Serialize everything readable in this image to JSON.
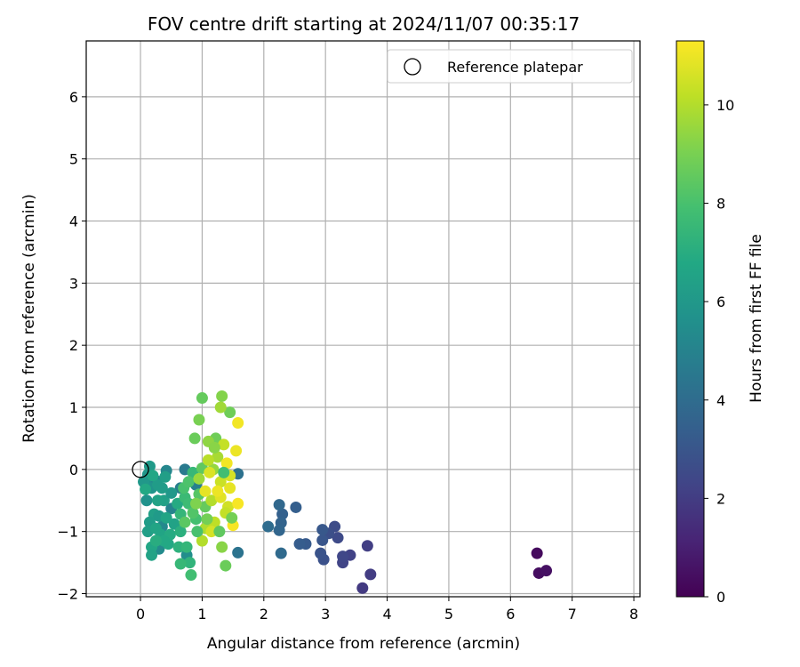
{
  "chart_data": {
    "type": "scatter",
    "title": "FOV centre drift starting at 2024/11/07 00:35:17",
    "xlabel": "Angular distance from reference (arcmin)",
    "ylabel": "Rotation from reference (arcmin)",
    "xlim": [
      -0.88,
      8.1
    ],
    "ylim": [
      -2.05,
      6.9
    ],
    "xticks": [
      0,
      1,
      2,
      3,
      4,
      5,
      6,
      7,
      8
    ],
    "yticks": [
      -2,
      -1,
      0,
      1,
      2,
      3,
      4,
      5,
      6
    ],
    "grid": true,
    "legend": {
      "placement": "top-right",
      "label": "Reference platepar"
    },
    "reference_point": {
      "x": 0,
      "y": 0
    },
    "colorbar": {
      "label": "Hours from first FF file",
      "range": [
        0,
        11.3
      ],
      "ticks": [
        0,
        2,
        4,
        6,
        8,
        10
      ],
      "colormap": "viridis"
    },
    "points": [
      {
        "x": 6.43,
        "y": -1.35,
        "c": 0.3
      },
      {
        "x": 6.46,
        "y": -1.67,
        "c": 0.4
      },
      {
        "x": 6.58,
        "y": -1.63,
        "c": 0.5
      },
      {
        "x": 3.6,
        "y": -1.91,
        "c": 1.9
      },
      {
        "x": 3.73,
        "y": -1.69,
        "c": 2.0
      },
      {
        "x": 3.68,
        "y": -1.23,
        "c": 2.1
      },
      {
        "x": 3.4,
        "y": -1.38,
        "c": 2.2
      },
      {
        "x": 3.28,
        "y": -1.5,
        "c": 2.3
      },
      {
        "x": 3.28,
        "y": -1.4,
        "c": 2.4
      },
      {
        "x": 3.2,
        "y": -1.1,
        "c": 2.5
      },
      {
        "x": 3.15,
        "y": -0.92,
        "c": 2.6
      },
      {
        "x": 3.05,
        "y": -1.03,
        "c": 2.7
      },
      {
        "x": 2.97,
        "y": -1.45,
        "c": 2.8
      },
      {
        "x": 2.92,
        "y": -1.35,
        "c": 2.9
      },
      {
        "x": 2.95,
        "y": -1.14,
        "c": 3.0
      },
      {
        "x": 2.95,
        "y": -0.97,
        "c": 3.1
      },
      {
        "x": 2.68,
        "y": -1.2,
        "c": 3.2
      },
      {
        "x": 2.58,
        "y": -1.2,
        "c": 3.3
      },
      {
        "x": 2.52,
        "y": -0.61,
        "c": 3.4
      },
      {
        "x": 2.3,
        "y": -0.72,
        "c": 3.5
      },
      {
        "x": 2.28,
        "y": -0.86,
        "c": 3.6
      },
      {
        "x": 2.25,
        "y": -0.98,
        "c": 3.7
      },
      {
        "x": 2.25,
        "y": -0.57,
        "c": 3.8
      },
      {
        "x": 2.28,
        "y": -1.35,
        "c": 3.9
      },
      {
        "x": 2.07,
        "y": -0.92,
        "c": 4.0
      },
      {
        "x": 1.58,
        "y": -0.07,
        "c": 4.2
      },
      {
        "x": 1.58,
        "y": -1.34,
        "c": 4.3
      },
      {
        "x": 0.72,
        "y": 0.0,
        "c": 4.6
      },
      {
        "x": 0.65,
        "y": -0.3,
        "c": 4.8
      },
      {
        "x": 0.9,
        "y": -0.25,
        "c": 4.9
      },
      {
        "x": 0.5,
        "y": -0.63,
        "c": 5.0
      },
      {
        "x": 0.25,
        "y": -0.18,
        "c": 5.1
      },
      {
        "x": 0.42,
        "y": -0.02,
        "c": 5.2
      },
      {
        "x": 0.35,
        "y": -0.92,
        "c": 5.3
      },
      {
        "x": 0.3,
        "y": -1.28,
        "c": 5.4
      },
      {
        "x": 0.75,
        "y": -1.38,
        "c": 5.5
      },
      {
        "x": 0.08,
        "y": -0.18,
        "c": 5.6
      },
      {
        "x": 0.1,
        "y": -0.5,
        "c": 5.7
      },
      {
        "x": 0.18,
        "y": -0.3,
        "c": 5.8
      },
      {
        "x": 0.12,
        "y": -0.08,
        "c": 5.9
      },
      {
        "x": 0.05,
        "y": -0.2,
        "c": 6.0
      },
      {
        "x": 0.15,
        "y": 0.05,
        "c": 6.1
      },
      {
        "x": 0.28,
        "y": -0.25,
        "c": 6.2
      },
      {
        "x": 0.4,
        "y": -0.12,
        "c": 6.3
      },
      {
        "x": 0.22,
        "y": -0.72,
        "c": 6.4
      },
      {
        "x": 0.55,
        "y": -0.88,
        "c": 6.5
      },
      {
        "x": 0.33,
        "y": -1.05,
        "c": 6.6
      },
      {
        "x": 0.18,
        "y": -1.25,
        "c": 6.7
      },
      {
        "x": 0.45,
        "y": -1.2,
        "c": 6.8
      },
      {
        "x": 0.6,
        "y": -0.55,
        "c": 6.9
      },
      {
        "x": 0.15,
        "y": -0.85,
        "c": 6.2
      },
      {
        "x": 0.12,
        "y": -1.0,
        "c": 6.3
      },
      {
        "x": 0.18,
        "y": -1.38,
        "c": 6.5
      },
      {
        "x": 0.25,
        "y": -0.95,
        "c": 6.6
      },
      {
        "x": 0.3,
        "y": -0.75,
        "c": 6.1
      },
      {
        "x": 0.38,
        "y": -0.5,
        "c": 6.4
      },
      {
        "x": 0.2,
        "y": -0.1,
        "c": 6.7
      },
      {
        "x": 0.08,
        "y": -0.32,
        "c": 6.8
      },
      {
        "x": 0.5,
        "y": -0.38,
        "c": 6.0
      },
      {
        "x": 0.35,
        "y": -0.3,
        "c": 6.2
      },
      {
        "x": 0.28,
        "y": -0.5,
        "c": 6.5
      },
      {
        "x": 0.42,
        "y": -0.78,
        "c": 6.6
      },
      {
        "x": 0.48,
        "y": -1.05,
        "c": 6.9
      },
      {
        "x": 0.38,
        "y": -1.15,
        "c": 6.8
      },
      {
        "x": 0.25,
        "y": -1.15,
        "c": 7.0
      },
      {
        "x": 0.65,
        "y": -1.0,
        "c": 7.1
      },
      {
        "x": 0.62,
        "y": -1.25,
        "c": 7.2
      },
      {
        "x": 0.8,
        "y": -1.5,
        "c": 7.3
      },
      {
        "x": 0.75,
        "y": -1.25,
        "c": 7.4
      },
      {
        "x": 0.65,
        "y": -1.52,
        "c": 7.5
      },
      {
        "x": 0.65,
        "y": -0.72,
        "c": 7.4
      },
      {
        "x": 0.72,
        "y": -0.45,
        "c": 7.6
      },
      {
        "x": 0.85,
        "y": -0.05,
        "c": 7.5
      },
      {
        "x": 0.78,
        "y": -0.55,
        "c": 7.7
      },
      {
        "x": 0.82,
        "y": -1.7,
        "c": 7.8
      },
      {
        "x": 0.9,
        "y": -0.8,
        "c": 7.9
      },
      {
        "x": 0.7,
        "y": -0.3,
        "c": 8.0
      },
      {
        "x": 0.78,
        "y": -0.2,
        "c": 8.1
      },
      {
        "x": 0.85,
        "y": -0.7,
        "c": 8.2
      },
      {
        "x": 0.95,
        "y": -0.4,
        "c": 8.3
      },
      {
        "x": 0.72,
        "y": -0.85,
        "c": 8.4
      },
      {
        "x": 1.0,
        "y": 0.02,
        "c": 8.5
      },
      {
        "x": 1.05,
        "y": -0.6,
        "c": 8.6
      },
      {
        "x": 1.0,
        "y": 1.15,
        "c": 8.6
      },
      {
        "x": 1.38,
        "y": -1.55,
        "c": 8.7
      },
      {
        "x": 0.88,
        "y": 0.5,
        "c": 8.7
      },
      {
        "x": 1.22,
        "y": 0.5,
        "c": 8.8
      },
      {
        "x": 1.45,
        "y": 0.92,
        "c": 8.8
      },
      {
        "x": 0.95,
        "y": 0.8,
        "c": 9.0
      },
      {
        "x": 1.32,
        "y": 1.18,
        "c": 9.2
      },
      {
        "x": 1.32,
        "y": -1.25,
        "c": 9.3
      },
      {
        "x": 1.1,
        "y": 0.45,
        "c": 9.4
      },
      {
        "x": 1.18,
        "y": 0.0,
        "c": 9.5
      },
      {
        "x": 1.3,
        "y": 1.0,
        "c": 9.7
      },
      {
        "x": 1.25,
        "y": 0.2,
        "c": 9.8
      },
      {
        "x": 1.05,
        "y": -0.95,
        "c": 9.9
      },
      {
        "x": 1.15,
        "y": -0.5,
        "c": 10.0
      },
      {
        "x": 1.1,
        "y": 0.15,
        "c": 10.1
      },
      {
        "x": 1.2,
        "y": -0.85,
        "c": 10.2
      },
      {
        "x": 1.35,
        "y": 0.4,
        "c": 10.3
      },
      {
        "x": 1.3,
        "y": -0.2,
        "c": 10.4
      },
      {
        "x": 1.42,
        "y": -0.6,
        "c": 10.5
      },
      {
        "x": 1.15,
        "y": -1.0,
        "c": 10.6
      },
      {
        "x": 1.3,
        "y": -0.45,
        "c": 10.8
      },
      {
        "x": 1.45,
        "y": -0.3,
        "c": 10.9
      },
      {
        "x": 1.55,
        "y": 0.3,
        "c": 11.0
      },
      {
        "x": 1.58,
        "y": 0.75,
        "c": 11.1
      },
      {
        "x": 1.5,
        "y": -0.9,
        "c": 11.2
      },
      {
        "x": 1.58,
        "y": -0.55,
        "c": 11.2
      },
      {
        "x": 1.4,
        "y": 0.1,
        "c": 11.1
      },
      {
        "x": 1.25,
        "y": -0.35,
        "c": 11.0
      },
      {
        "x": 1.05,
        "y": -0.35,
        "c": 10.9
      },
      {
        "x": 1.12,
        "y": -0.05,
        "c": 10.7
      },
      {
        "x": 1.45,
        "y": -0.1,
        "c": 10.6
      },
      {
        "x": 1.38,
        "y": -0.7,
        "c": 10.3
      },
      {
        "x": 1.0,
        "y": -1.15,
        "c": 10.0
      },
      {
        "x": 0.95,
        "y": -0.15,
        "c": 9.6
      },
      {
        "x": 1.2,
        "y": 0.35,
        "c": 9.3
      },
      {
        "x": 0.9,
        "y": -0.55,
        "c": 9.1
      },
      {
        "x": 1.08,
        "y": -0.8,
        "c": 8.9
      },
      {
        "x": 1.28,
        "y": -1.0,
        "c": 8.5
      },
      {
        "x": 1.48,
        "y": -0.78,
        "c": 8.9
      },
      {
        "x": 0.92,
        "y": -1.0,
        "c": 8.0
      },
      {
        "x": 1.35,
        "y": -0.05,
        "c": 7.8
      }
    ]
  }
}
